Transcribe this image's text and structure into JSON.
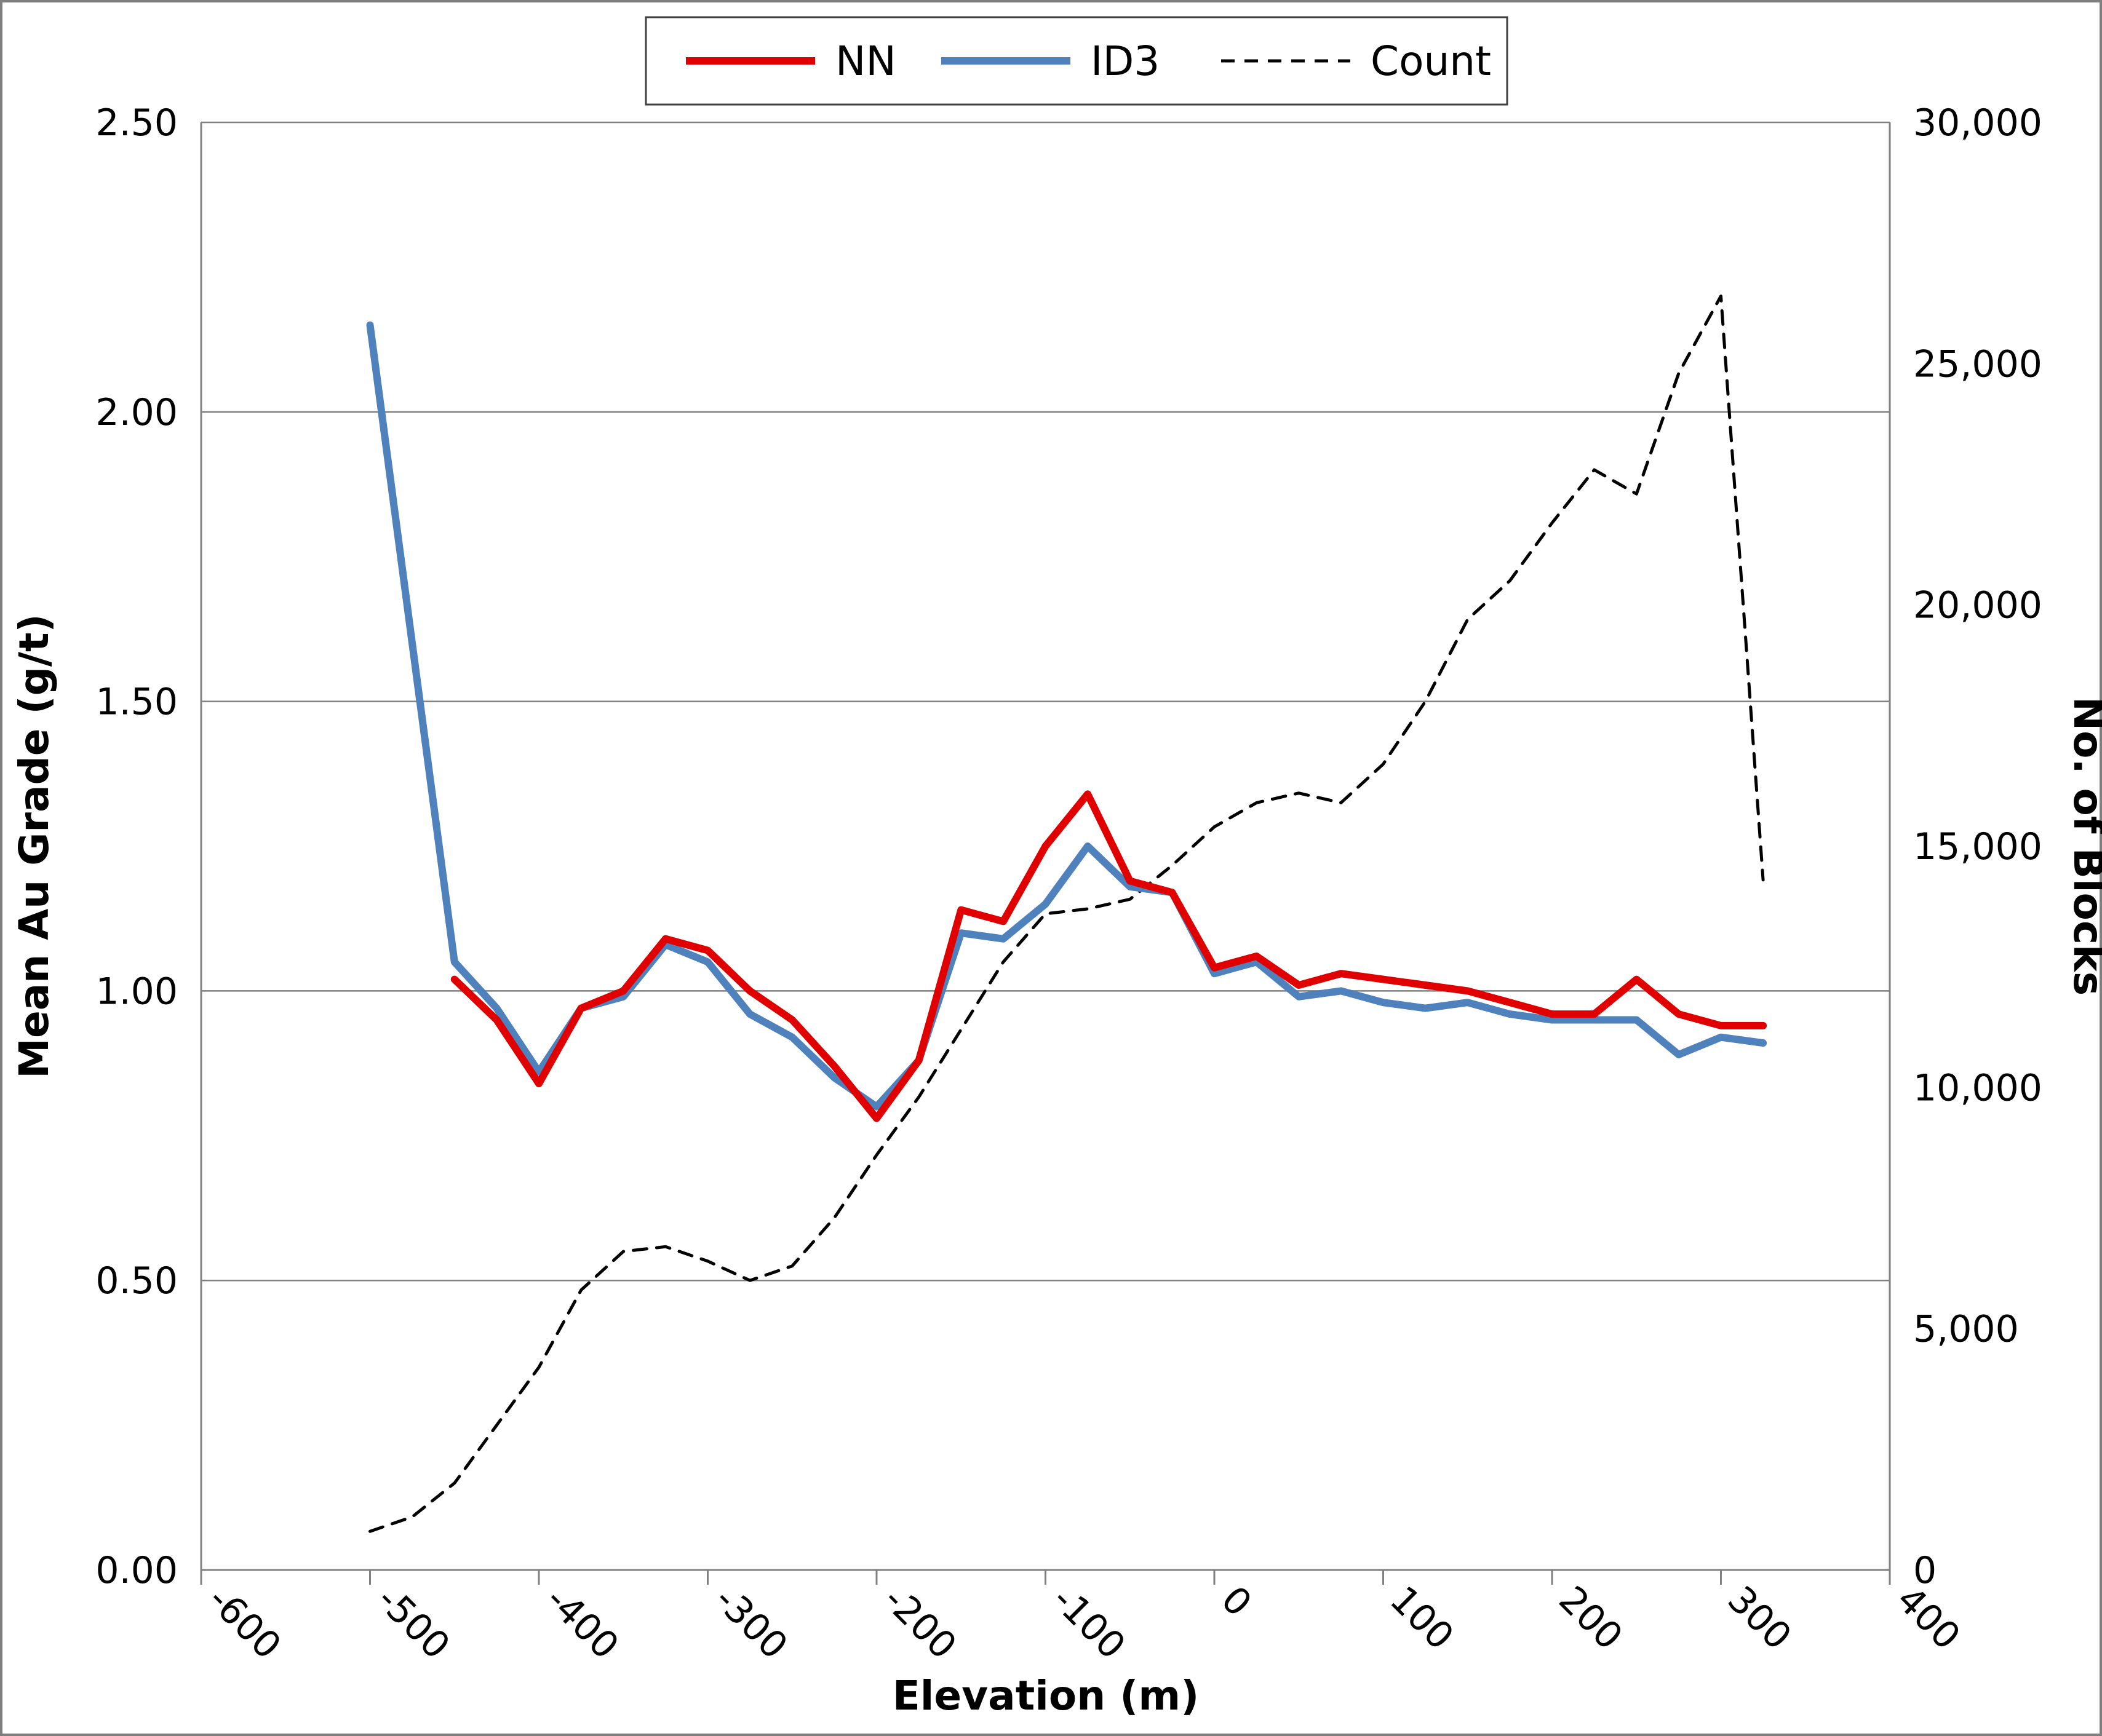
{
  "chart_data": {
    "type": "line",
    "title": "",
    "legend_position": "top",
    "grid": "horizontal",
    "x_axis": {
      "title": "Elevation (m)",
      "min": -600,
      "max": 400,
      "tick_values": [
        -600,
        -500,
        -400,
        -300,
        -200,
        -100,
        0,
        100,
        200,
        300,
        400
      ],
      "tick_labels": [
        "-600",
        "-500",
        "-400",
        "-300",
        "-200",
        "-100",
        "0",
        "100",
        "200",
        "300",
        "400"
      ]
    },
    "y_axis_left": {
      "title": "Mean Au Grade (g/t)",
      "min": 0,
      "max": 2.5,
      "tick_values": [
        0,
        0.5,
        1.0,
        1.5,
        2.0,
        2.5
      ],
      "tick_labels": [
        "0.00",
        "0.50",
        "1.00",
        "1.50",
        "2.00",
        "2.50"
      ]
    },
    "y_axis_right": {
      "title": "No. of Blocks",
      "min": 0,
      "max": 30000,
      "tick_values": [
        0,
        5000,
        10000,
        15000,
        20000,
        25000,
        30000
      ],
      "tick_labels": [
        "0",
        "5,000",
        "10,000",
        "15,000",
        "20,000",
        "25,000",
        "30,000"
      ]
    },
    "x": [
      -500,
      -475,
      -450,
      -425,
      -400,
      -375,
      -350,
      -325,
      -300,
      -275,
      -250,
      -225,
      -200,
      -175,
      -150,
      -125,
      -100,
      -75,
      -50,
      -25,
      0,
      25,
      50,
      75,
      100,
      125,
      150,
      175,
      200,
      225,
      250,
      275,
      300,
      325
    ],
    "series": [
      {
        "name": "NN",
        "axis": "left",
        "color": "#e00000",
        "style": "solid",
        "values": [
          null,
          null,
          1.02,
          0.95,
          0.84,
          0.97,
          1.0,
          1.09,
          1.07,
          1.0,
          0.95,
          0.87,
          0.78,
          0.88,
          1.14,
          1.12,
          1.25,
          1.34,
          1.19,
          1.17,
          1.04,
          1.06,
          1.01,
          1.03,
          1.02,
          1.01,
          1.0,
          0.98,
          0.96,
          0.96,
          1.02,
          0.96,
          0.94,
          0.94
        ]
      },
      {
        "name": "ID3",
        "axis": "left",
        "color": "#4f81bd",
        "style": "solid",
        "values": [
          2.15,
          1.6,
          1.05,
          0.97,
          0.86,
          0.97,
          0.99,
          1.08,
          1.05,
          0.96,
          0.92,
          0.85,
          0.8,
          0.88,
          1.1,
          1.09,
          1.15,
          1.25,
          1.18,
          1.17,
          1.03,
          1.05,
          0.99,
          1.0,
          0.98,
          0.97,
          0.98,
          0.96,
          0.95,
          0.95,
          0.95,
          0.89,
          0.92,
          0.91
        ]
      },
      {
        "name": "Count",
        "axis": "right",
        "color": "#000000",
        "style": "dashed",
        "values": [
          800,
          1100,
          1800,
          3000,
          4200,
          5800,
          6600,
          6700,
          6400,
          6000,
          6300,
          7300,
          8600,
          9800,
          11200,
          12600,
          13600,
          13700,
          13900,
          14600,
          15400,
          15900,
          16100,
          15900,
          16700,
          18000,
          19700,
          20500,
          21700,
          22800,
          22300,
          24800,
          26400,
          14300
        ]
      }
    ],
    "colors": {
      "grid": "#808080",
      "axis": "#808080",
      "border": "#7f7f7f",
      "legend_border": "#404040"
    }
  }
}
